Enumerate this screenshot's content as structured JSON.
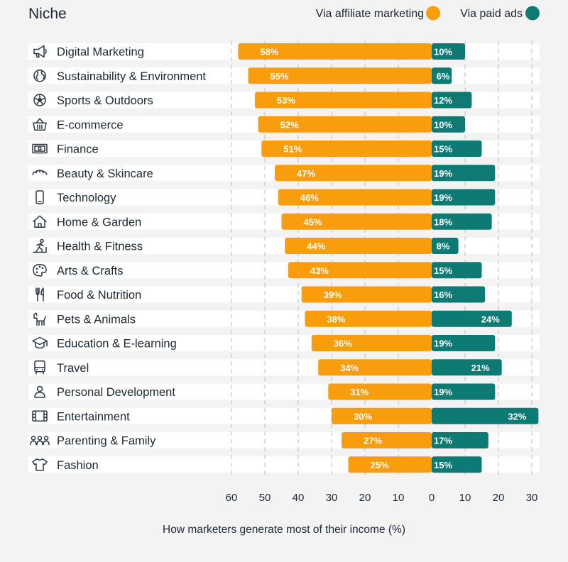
{
  "chart_data": {
    "type": "bar",
    "orientation": "horizontal-diverging",
    "title": "Niche",
    "xlabel": "How marketers  generate most of their income (%)",
    "left_axis_ticks": [
      60,
      50,
      40,
      30,
      20,
      10,
      0
    ],
    "right_axis_ticks": [
      10,
      20,
      30
    ],
    "xlim_left": [
      0,
      60
    ],
    "xlim_right": [
      0,
      32
    ],
    "grid": "vertical-dashed",
    "legend_position": "top-right",
    "categories": [
      "Digital Marketing",
      "Sustainability & Environment",
      "Sports & Outdoors",
      "E-commerce",
      "Finance",
      "Beauty & Skincare",
      "Technology",
      "Home & Garden",
      "Health & Fitness",
      "Arts & Crafts",
      "Food & Nutrition",
      "Pets & Animals",
      "Education & E-learning",
      "Travel",
      "Personal Development",
      "Entertainment",
      "Parenting & Family",
      "Fashion"
    ],
    "icons": [
      "megaphone-icon",
      "globe-icon",
      "ball-icon",
      "basket-icon",
      "banknote-icon",
      "eye-icon",
      "phone-icon",
      "house-icon",
      "runner-icon",
      "palette-icon",
      "utensils-icon",
      "dog-icon",
      "graduation-cap-icon",
      "bus-icon",
      "person-icon",
      "film-icon",
      "family-icon",
      "shirt-icon"
    ],
    "series": [
      {
        "name": "Via affiliate marketing",
        "side": "left",
        "color": "#f99d0c",
        "values": [
          58,
          55,
          53,
          52,
          51,
          47,
          46,
          45,
          44,
          43,
          39,
          38,
          36,
          34,
          31,
          30,
          27,
          25
        ],
        "labels": [
          "58%",
          "55%",
          "53%",
          "52%",
          "51%",
          "47%",
          "46%",
          "45%",
          "44%",
          "43%",
          "39%",
          "38%",
          "36%",
          "34%",
          "31%",
          "30%",
          "27%",
          "25%"
        ]
      },
      {
        "name": "Via paid ads",
        "side": "right",
        "color": "#0d7a73",
        "values": [
          10,
          6,
          12,
          10,
          15,
          19,
          19,
          18,
          8,
          15,
          16,
          24,
          19,
          21,
          19,
          32,
          17,
          15
        ],
        "labels": [
          "10%",
          "6%",
          "12%",
          "10%",
          "15%",
          "19%",
          "19%",
          "18%",
          "8%",
          "15%",
          "16%",
          "24%",
          "19%",
          "21%",
          "19%",
          "32%",
          "17%",
          "15%"
        ]
      }
    ]
  }
}
